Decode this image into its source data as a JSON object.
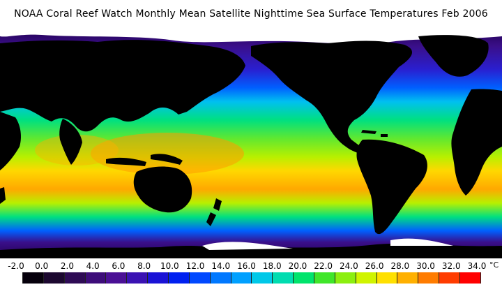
{
  "title": "NOAA Coral Reef Watch Monthly Mean Satellite Nighttime Sea Surface Temperatures    Feb 2006",
  "colorbar": {
    "ticks": [
      "-2.0",
      "0.0",
      "2.0",
      "4.0",
      "6.0",
      "8.0",
      "10.0",
      "12.0",
      "14.0",
      "16.0",
      "18.0",
      "20.0",
      "22.0",
      "24.0",
      "26.0",
      "28.0",
      "30.0",
      "32.0",
      "34.0"
    ],
    "unit": "°C",
    "colors": [
      "#06000c",
      "#1c0830",
      "#2e0b55",
      "#3d0d7a",
      "#4a1095",
      "#3a12b3",
      "#1a12d6",
      "#0020f0",
      "#0048ff",
      "#0078ff",
      "#00a0ff",
      "#00c8e8",
      "#00dcb0",
      "#00e46c",
      "#40e62a",
      "#8cef10",
      "#d0f400",
      "#ffe000",
      "#ffb000",
      "#ff7c00",
      "#ff3c00",
      "#ff0000"
    ]
  },
  "map": {
    "land_color": "#000000",
    "ice_color": "#ffffff",
    "ocean_gradient_colors": [
      "#220050",
      "#3a0f8a",
      "#2a1fd0",
      "#0060ff",
      "#00c0f0",
      "#00e080",
      "#60e830",
      "#b8f000",
      "#ffd800",
      "#ffa800",
      "#ff8000"
    ]
  }
}
